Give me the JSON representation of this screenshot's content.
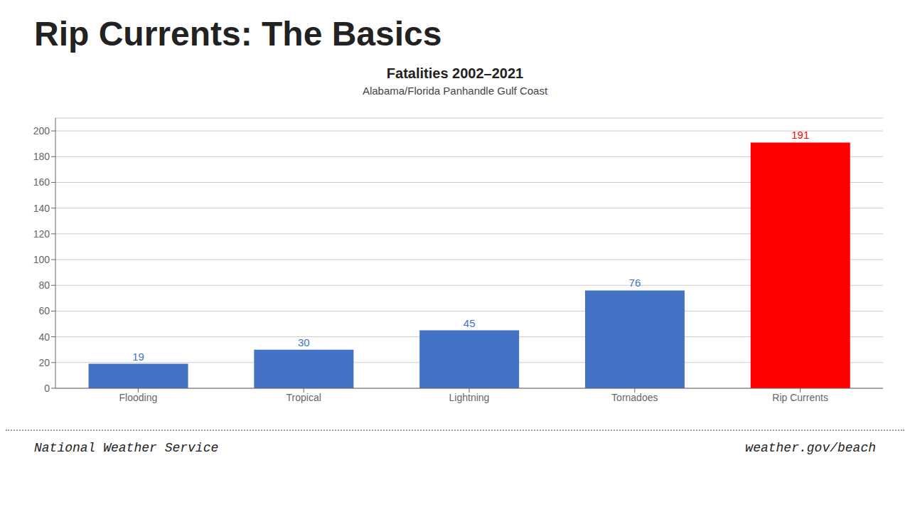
{
  "chart_data": {
    "type": "bar",
    "title": "Rip Currents: The Basics",
    "subtitle": "Fatalities 2002–2021",
    "annotations": [
      "Alabama/Florida Panhandle Gulf Coast",
      "National Weather Service",
      "weather.gov/beach"
    ],
    "categories": [
      "Flooding",
      "Tropical",
      "Lightning",
      "Tornadoes",
      "Rip Currents"
    ],
    "values": [
      19,
      30,
      45,
      76,
      191
    ],
    "colors": [
      "#4472C4",
      "#4472C4",
      "#4472C4",
      "#4472C4",
      "#FF0000"
    ],
    "ylim": [
      0,
      210
    ],
    "yticks": [
      0,
      20,
      40,
      60,
      80,
      100,
      120,
      140,
      160,
      180,
      200
    ],
    "grid": true,
    "data_labels": true
  }
}
